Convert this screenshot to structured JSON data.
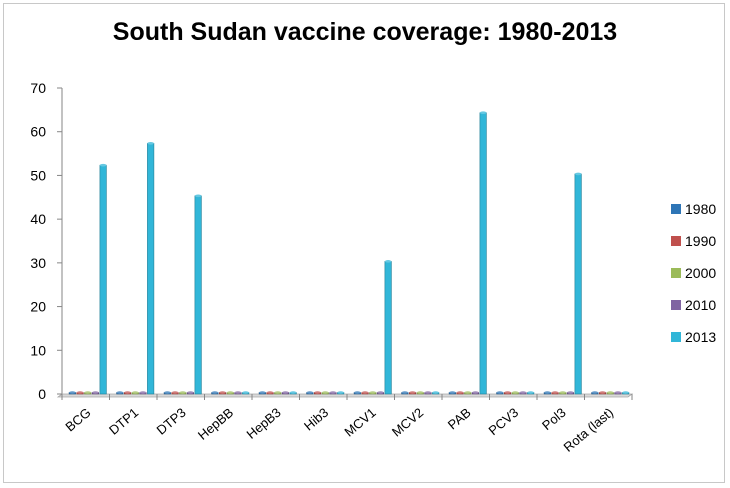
{
  "chart_data": {
    "type": "bar",
    "title": "South Sudan vaccine coverage: 1980-2013",
    "xlabel": "",
    "ylabel": "",
    "ylim": [
      0,
      70
    ],
    "yticks": [
      0,
      10,
      20,
      30,
      40,
      50,
      60,
      70
    ],
    "grid": false,
    "legend_position": "right",
    "categories": [
      "BCG",
      "DTP1",
      "DTP3",
      "HepBB",
      "HepB3",
      "Hib3",
      "MCV1",
      "MCV2",
      "PAB",
      "PCV3",
      "Pol3",
      "Rota (last)"
    ],
    "series": [
      {
        "name": "1980",
        "color": "#2e75b6",
        "values": [
          0,
          0,
          0,
          0,
          0,
          0,
          0,
          0,
          0,
          0,
          0,
          0
        ]
      },
      {
        "name": "1990",
        "color": "#c0504d",
        "values": [
          0,
          0,
          0,
          0,
          0,
          0,
          0,
          0,
          0,
          0,
          0,
          0
        ]
      },
      {
        "name": "2000",
        "color": "#9bbb59",
        "values": [
          0,
          0,
          0,
          0,
          0,
          0,
          0,
          0,
          0,
          0,
          0,
          0
        ]
      },
      {
        "name": "2010",
        "color": "#8064a2",
        "values": [
          0,
          0,
          0,
          0,
          0,
          0,
          0,
          0,
          0,
          0,
          0,
          0
        ]
      },
      {
        "name": "2013",
        "color": "#31b6d8",
        "values": [
          52,
          57,
          45,
          0,
          0,
          0,
          30,
          0,
          64,
          0,
          50,
          0
        ]
      }
    ]
  }
}
